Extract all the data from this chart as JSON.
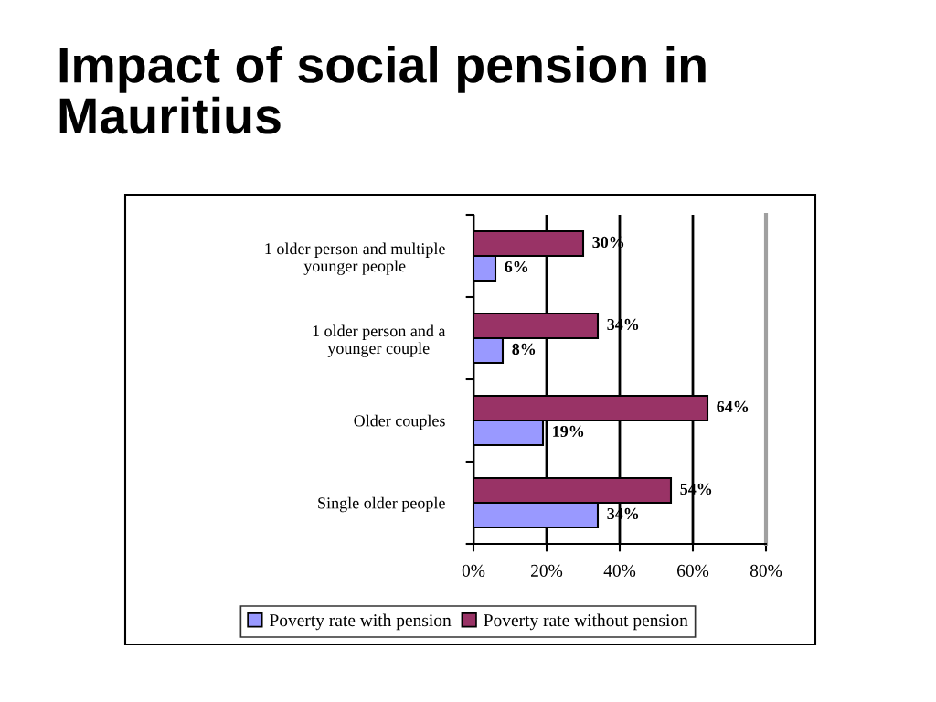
{
  "chart_data": {
    "type": "bar",
    "orientation": "horizontal",
    "title": "Impact of social pension in\nMauritius",
    "categories": [
      "1 older person and multiple\nyounger people",
      "1 older person and a\nyounger couple",
      "Older couples",
      "Single older people"
    ],
    "series": [
      {
        "name": "Poverty rate with pension",
        "color": "#9999ff",
        "values": [
          6,
          8,
          19,
          34
        ],
        "value_labels": [
          "6%",
          "8%",
          "19%",
          "34%"
        ]
      },
      {
        "name": "Poverty rate without pension",
        "color": "#993366",
        "values": [
          30,
          34,
          64,
          54
        ],
        "value_labels": [
          "30%",
          "34%",
          "64%",
          "54%"
        ]
      }
    ],
    "xlim": [
      0,
      80
    ],
    "xticks": [
      {
        "value": 0,
        "label": "0%"
      },
      {
        "value": 20,
        "label": "20%"
      },
      {
        "value": 40,
        "label": "40%"
      },
      {
        "value": 60,
        "label": "60%"
      },
      {
        "value": 80,
        "label": "80%"
      }
    ],
    "grid": "x",
    "legend": "bottom"
  }
}
